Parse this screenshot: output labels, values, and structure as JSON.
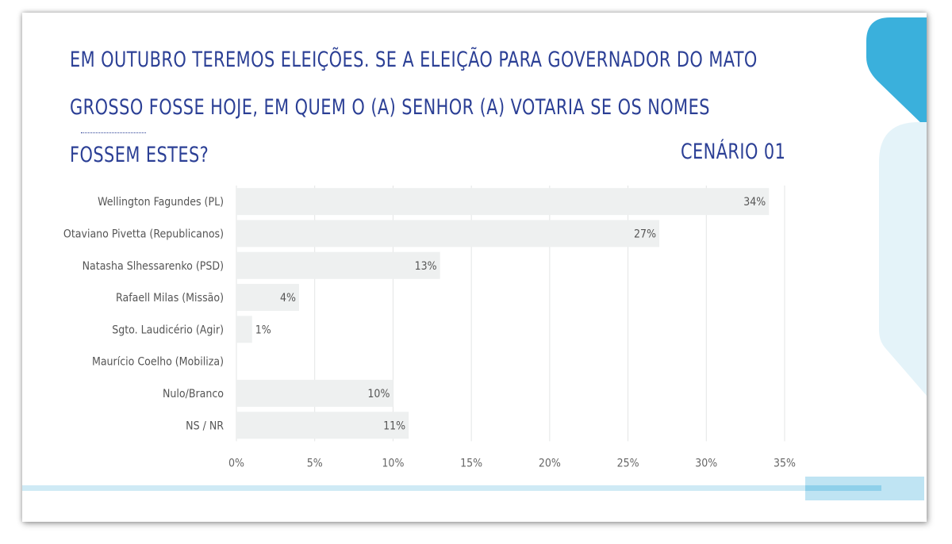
{
  "header": {
    "title": "EM OUTUBRO TEREMOS ELEIÇÕES. SE A ELEIÇÃO PARA GOVERNADOR DO MATO GROSSO FOSSE HOJE, EM QUEM O (A) SENHOR (A) VOTARIA SE OS NOMES FOSSEM ESTES?",
    "scenario": "CENÁRIO 01"
  },
  "colors": {
    "title": "#2b3f95",
    "bar": "#eef0f0",
    "grid": "#e3e5e5",
    "accent_blue": "#3ab0dc",
    "accent_light": "#d8eff8"
  },
  "chart_data": {
    "type": "bar",
    "orientation": "horizontal",
    "categories": [
      "Wellington Fagundes (PL)",
      "Otaviano Pivetta (Republicanos)",
      "Natasha Slhessarenko (PSD)",
      "Rafaell Milas (Missão)",
      "Sgto. Laudicério (Agir)",
      "Maurício Coelho (Mobiliza)",
      "Nulo/Branco",
      "NS / NR"
    ],
    "values": [
      34,
      27,
      13,
      4,
      1,
      0,
      10,
      11
    ],
    "value_labels": [
      "34%",
      "27%",
      "13%",
      "4%",
      "1%",
      "",
      "10%",
      "11%"
    ],
    "x_ticks": [
      0,
      5,
      10,
      15,
      20,
      25,
      30,
      35
    ],
    "x_tick_labels": [
      "0%",
      "5%",
      "10%",
      "15%",
      "20%",
      "25%",
      "30%",
      "35%"
    ],
    "xlim": [
      0,
      35
    ],
    "grid": true,
    "legend": "none"
  }
}
